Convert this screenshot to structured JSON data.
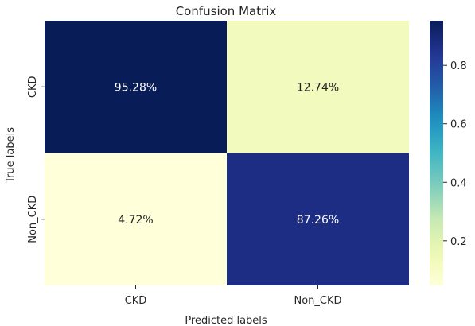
{
  "chart_data": {
    "type": "heatmap",
    "title": "Confusion Matrix",
    "xlabel": "Predicted labels",
    "ylabel": "True labels",
    "x_categories": [
      "CKD",
      "Non_CKD"
    ],
    "y_categories": [
      "CKD",
      "Non_CKD"
    ],
    "values": [
      [
        0.9528,
        0.1274
      ],
      [
        0.0472,
        0.8726
      ]
    ],
    "cell_labels": [
      [
        "95.28%",
        "12.74%"
      ],
      [
        "4.72%",
        "87.26%"
      ]
    ],
    "colormap": "YlGnBu",
    "colorbar": {
      "range": [
        0.0472,
        0.9528
      ],
      "ticks": [
        0.2,
        0.4,
        0.6,
        0.8
      ],
      "tick_labels": [
        "0.2",
        "0.4",
        "0.6",
        "0.8"
      ]
    }
  }
}
